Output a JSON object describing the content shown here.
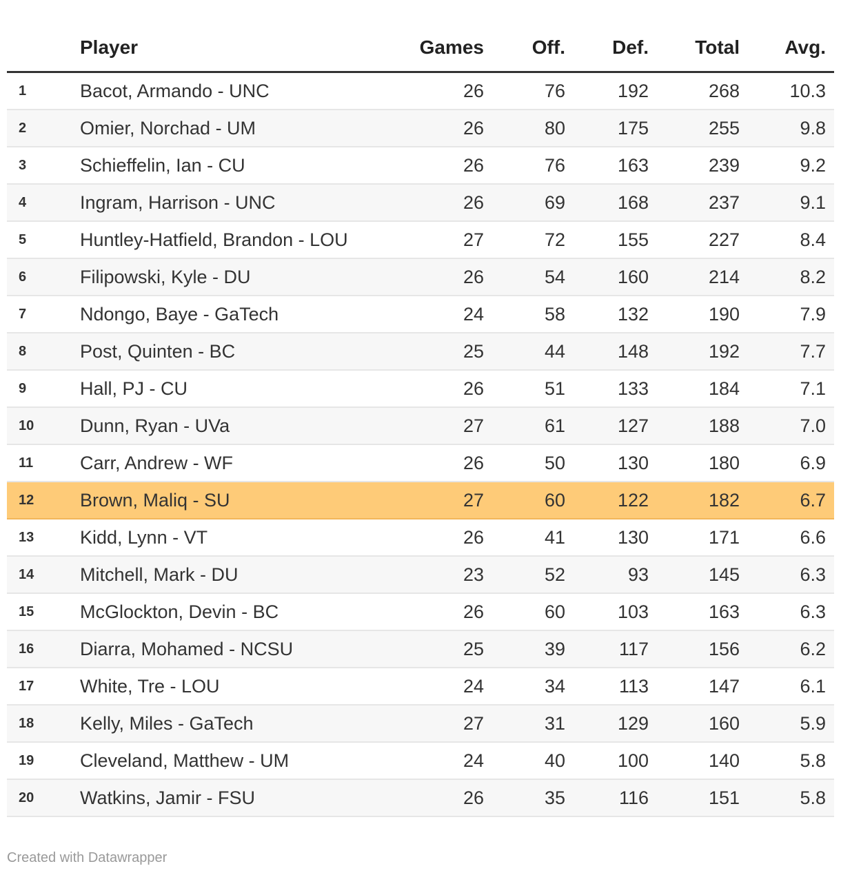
{
  "chart_data": {
    "type": "table",
    "columns": [
      "",
      "Player",
      "Games",
      "Off.",
      "Def.",
      "Total",
      "Avg."
    ],
    "highlight_color": "#fecb78",
    "highlight_row": 12,
    "rows": [
      {
        "rank": "1",
        "player": "Bacot, Armando - UNC",
        "games": "26",
        "off": "76",
        "def": "192",
        "total": "268",
        "avg": "10.3"
      },
      {
        "rank": "2",
        "player": "Omier, Norchad - UM",
        "games": "26",
        "off": "80",
        "def": "175",
        "total": "255",
        "avg": "9.8"
      },
      {
        "rank": "3",
        "player": "Schieffelin, Ian - CU",
        "games": "26",
        "off": "76",
        "def": "163",
        "total": "239",
        "avg": "9.2"
      },
      {
        "rank": "4",
        "player": "Ingram, Harrison - UNC",
        "games": "26",
        "off": "69",
        "def": "168",
        "total": "237",
        "avg": "9.1"
      },
      {
        "rank": "5",
        "player": "Huntley-Hatfield, Brandon - LOU",
        "games": "27",
        "off": "72",
        "def": "155",
        "total": "227",
        "avg": "8.4"
      },
      {
        "rank": "6",
        "player": "Filipowski, Kyle - DU",
        "games": "26",
        "off": "54",
        "def": "160",
        "total": "214",
        "avg": "8.2"
      },
      {
        "rank": "7",
        "player": "Ndongo, Baye - GaTech",
        "games": "24",
        "off": "58",
        "def": "132",
        "total": "190",
        "avg": "7.9"
      },
      {
        "rank": "8",
        "player": "Post, Quinten - BC",
        "games": "25",
        "off": "44",
        "def": "148",
        "total": "192",
        "avg": "7.7"
      },
      {
        "rank": "9",
        "player": "Hall, PJ - CU",
        "games": "26",
        "off": "51",
        "def": "133",
        "total": "184",
        "avg": "7.1"
      },
      {
        "rank": "10",
        "player": "Dunn, Ryan - UVa",
        "games": "27",
        "off": "61",
        "def": "127",
        "total": "188",
        "avg": "7.0"
      },
      {
        "rank": "11",
        "player": "Carr, Andrew - WF",
        "games": "26",
        "off": "50",
        "def": "130",
        "total": "180",
        "avg": "6.9"
      },
      {
        "rank": "12",
        "player": "Brown, Maliq - SU",
        "games": "27",
        "off": "60",
        "def": "122",
        "total": "182",
        "avg": "6.7"
      },
      {
        "rank": "13",
        "player": "Kidd, Lynn - VT",
        "games": "26",
        "off": "41",
        "def": "130",
        "total": "171",
        "avg": "6.6"
      },
      {
        "rank": "14",
        "player": "Mitchell, Mark - DU",
        "games": "23",
        "off": "52",
        "def": "93",
        "total": "145",
        "avg": "6.3"
      },
      {
        "rank": "15",
        "player": "McGlockton, Devin - BC",
        "games": "26",
        "off": "60",
        "def": "103",
        "total": "163",
        "avg": "6.3"
      },
      {
        "rank": "16",
        "player": "Diarra, Mohamed - NCSU",
        "games": "25",
        "off": "39",
        "def": "117",
        "total": "156",
        "avg": "6.2"
      },
      {
        "rank": "17",
        "player": "White, Tre - LOU",
        "games": "24",
        "off": "34",
        "def": "113",
        "total": "147",
        "avg": "6.1"
      },
      {
        "rank": "18",
        "player": "Kelly, Miles - GaTech",
        "games": "27",
        "off": "31",
        "def": "129",
        "total": "160",
        "avg": "5.9"
      },
      {
        "rank": "19",
        "player": "Cleveland, Matthew - UM",
        "games": "24",
        "off": "40",
        "def": "100",
        "total": "140",
        "avg": "5.8"
      },
      {
        "rank": "20",
        "player": "Watkins, Jamir - FSU",
        "games": "26",
        "off": "35",
        "def": "116",
        "total": "151",
        "avg": "5.8"
      }
    ]
  },
  "footer": {
    "credit": "Created with Datawrapper"
  }
}
